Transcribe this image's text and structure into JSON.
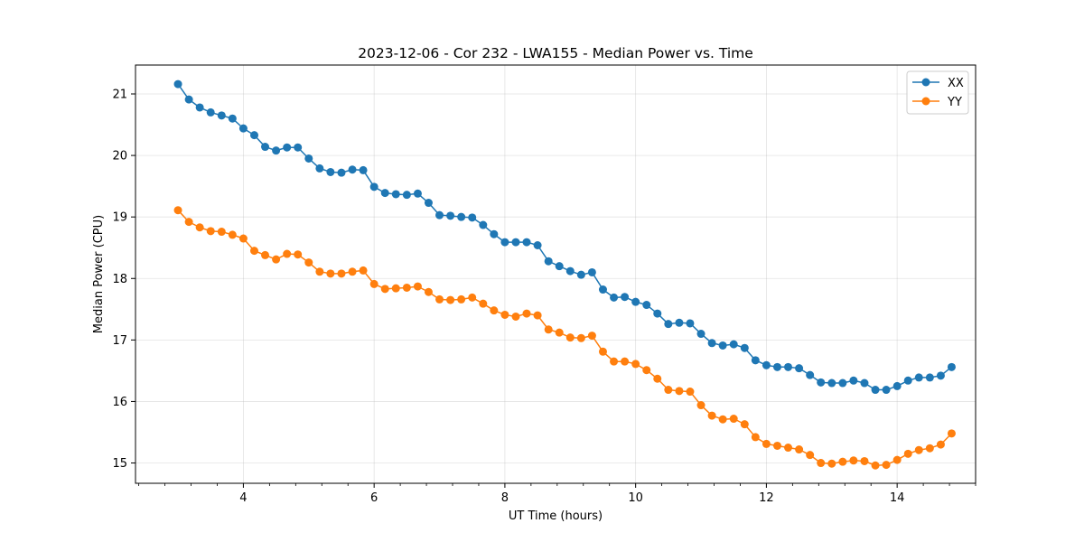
{
  "chart_data": {
    "type": "line",
    "title": "2023-12-06 - Cor 232 - LWA155 - Median Power vs. Time",
    "xlabel": "UT Time (hours)",
    "ylabel": "Median Power (CPU)",
    "xlim": [
      2.35,
      15.2
    ],
    "ylim": [
      14.67,
      21.47
    ],
    "x_ticks": [
      4,
      6,
      8,
      10,
      12,
      14
    ],
    "x_tick_labels": [
      "4",
      "6",
      "8",
      "10",
      "12",
      "14"
    ],
    "x_minor_step": 0.4,
    "y_ticks": [
      15,
      16,
      17,
      18,
      19,
      20,
      21
    ],
    "y_tick_labels": [
      "15",
      "16",
      "17",
      "18",
      "19",
      "20",
      "21"
    ],
    "grid": true,
    "legend_position": "top-right",
    "x": [
      3.0,
      3.167,
      3.333,
      3.5,
      3.667,
      3.833,
      4.0,
      4.167,
      4.333,
      4.5,
      4.667,
      4.833,
      5.0,
      5.167,
      5.333,
      5.5,
      5.667,
      5.833,
      6.0,
      6.167,
      6.333,
      6.5,
      6.667,
      6.833,
      7.0,
      7.167,
      7.333,
      7.5,
      7.667,
      7.833,
      8.0,
      8.167,
      8.333,
      8.5,
      8.667,
      8.833,
      9.0,
      9.167,
      9.333,
      9.5,
      9.667,
      9.833,
      10.0,
      10.167,
      10.333,
      10.5,
      10.667,
      10.833,
      11.0,
      11.167,
      11.333,
      11.5,
      11.667,
      11.833,
      12.0,
      12.167,
      12.333,
      12.5,
      12.667,
      12.833,
      13.0,
      13.167,
      13.333,
      13.5,
      13.667,
      13.833,
      14.0,
      14.167,
      14.333,
      14.5,
      14.667,
      14.833
    ],
    "series": [
      {
        "name": "XX",
        "color": "#1f77b4",
        "values": [
          21.16,
          20.91,
          20.78,
          20.7,
          20.65,
          20.6,
          20.44,
          20.33,
          20.14,
          20.08,
          20.13,
          20.13,
          19.95,
          19.79,
          19.73,
          19.72,
          19.77,
          19.76,
          19.49,
          19.39,
          19.37,
          19.36,
          19.38,
          19.23,
          19.03,
          19.02,
          19.0,
          18.99,
          18.87,
          18.72,
          18.59,
          18.59,
          18.59,
          18.54,
          18.28,
          18.2,
          18.12,
          18.06,
          18.1,
          17.82,
          17.69,
          17.7,
          17.62,
          17.57,
          17.43,
          17.26,
          17.28,
          17.27,
          17.1,
          16.95,
          16.91,
          16.93,
          16.87,
          16.67,
          16.59,
          16.56,
          16.56,
          16.54,
          16.43,
          16.31,
          16.3,
          16.3,
          16.34,
          16.3,
          16.19,
          16.19,
          16.25,
          16.34,
          16.39,
          16.39,
          16.42,
          16.56
        ]
      },
      {
        "name": "YY",
        "color": "#ff7f0e",
        "values": [
          19.11,
          18.92,
          18.83,
          18.77,
          18.76,
          18.71,
          18.65,
          18.45,
          18.38,
          18.31,
          18.4,
          18.39,
          18.26,
          18.11,
          18.08,
          18.08,
          18.11,
          18.13,
          17.91,
          17.83,
          17.84,
          17.85,
          17.87,
          17.78,
          17.66,
          17.65,
          17.66,
          17.69,
          17.59,
          17.48,
          17.41,
          17.38,
          17.43,
          17.4,
          17.17,
          17.12,
          17.04,
          17.03,
          17.07,
          16.81,
          16.65,
          16.65,
          16.61,
          16.51,
          16.37,
          16.19,
          16.17,
          16.16,
          15.94,
          15.77,
          15.71,
          15.72,
          15.63,
          15.42,
          15.31,
          15.28,
          15.25,
          15.22,
          15.13,
          15.0,
          14.99,
          15.02,
          15.04,
          15.03,
          14.96,
          14.97,
          15.05,
          15.15,
          15.21,
          15.24,
          15.3,
          15.48
        ]
      }
    ]
  }
}
